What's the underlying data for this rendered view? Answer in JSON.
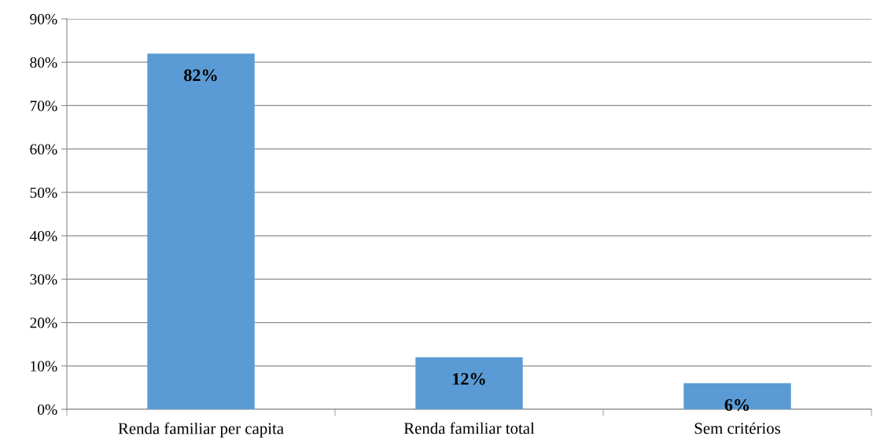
{
  "chart_data": {
    "type": "bar",
    "categories": [
      "Renda familiar per capita",
      "Renda familiar total",
      "Sem critérios"
    ],
    "values": [
      82,
      12,
      6
    ],
    "color": "#5b9bd5",
    "value_labels": [
      "82%",
      "12%",
      "6%"
    ],
    "ylim": [
      0,
      90
    ],
    "yticks": [
      {
        "value": 0,
        "label": "0%"
      },
      {
        "value": 10,
        "label": "10%"
      },
      {
        "value": 20,
        "label": "20%"
      },
      {
        "value": 30,
        "label": "30%"
      },
      {
        "value": 40,
        "label": "40%"
      },
      {
        "value": 50,
        "label": "50%"
      },
      {
        "value": 60,
        "label": "60%"
      },
      {
        "value": 70,
        "label": "70%"
      },
      {
        "value": 80,
        "label": "80%"
      },
      {
        "value": 90,
        "label": "90%"
      }
    ],
    "grid": "y",
    "legend": false
  }
}
